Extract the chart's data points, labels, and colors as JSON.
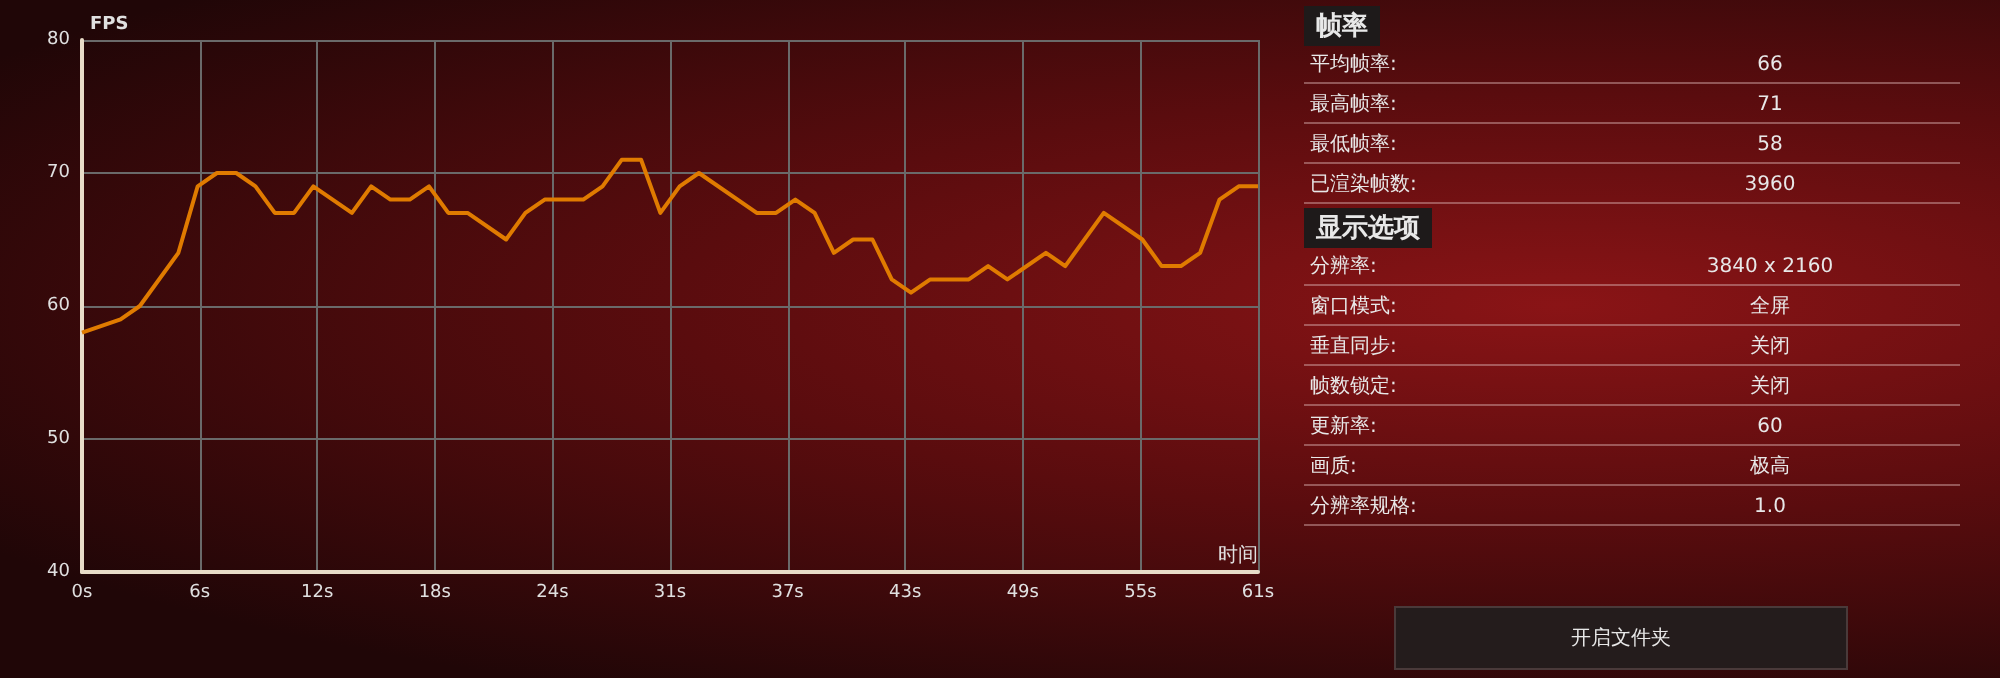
{
  "chart_data": [
    {
      "type": "line",
      "xlabel": "时间",
      "ylabel": "FPS",
      "series": [
        {
          "color": "#e07b00",
          "x": [
            0,
            2,
            3,
            5,
            6,
            7,
            8,
            9,
            10,
            11,
            12,
            14,
            15,
            16,
            17,
            18,
            19,
            20,
            22,
            23,
            24,
            26,
            27,
            28,
            29,
            30,
            31,
            32,
            35,
            36,
            37,
            38,
            39,
            40,
            41,
            42,
            43,
            44,
            46,
            47,
            48,
            50,
            51,
            53,
            55,
            56,
            57,
            58,
            59,
            60,
            61
          ],
          "values": [
            58,
            59,
            60,
            64,
            69,
            70,
            70,
            69,
            67,
            67,
            69,
            67,
            69,
            68,
            68,
            69,
            67,
            67,
            65,
            67,
            68,
            68,
            69,
            71,
            71,
            67,
            69,
            70,
            67,
            67,
            68,
            67,
            64,
            65,
            65,
            62,
            61,
            62,
            62,
            63,
            62,
            64,
            63,
            67,
            65,
            63,
            63,
            64,
            68,
            69,
            69
          ]
        }
      ],
      "xlim": [
        0,
        61
      ],
      "xticks": [
        {
          "value": 0,
          "label": "0s"
        },
        {
          "value": 6.1,
          "label": "6s"
        },
        {
          "value": 12.2,
          "label": "12s"
        },
        {
          "value": 18.3,
          "label": "18s"
        },
        {
          "value": 24.4,
          "label": "24s"
        },
        {
          "value": 30.5,
          "label": "31s"
        },
        {
          "value": 36.6,
          "label": "37s"
        },
        {
          "value": 42.7,
          "label": "43s"
        },
        {
          "value": 48.8,
          "label": "49s"
        },
        {
          "value": 54.9,
          "label": "55s"
        },
        {
          "value": 61,
          "label": "61s"
        }
      ],
      "ylim": [
        40,
        80
      ],
      "yticks": [
        40,
        50,
        60,
        70,
        80
      ],
      "grid": true,
      "marker": "none",
      "line_style": "solid"
    },
    {
      "type": "other",
      "title": "帧率",
      "annotations": [
        "平均帧率:",
        "66",
        "最高帧率:",
        "71",
        "最低帧率:",
        "58",
        "已渲染帧数:",
        "3960"
      ]
    },
    {
      "type": "other",
      "title": "显示选项",
      "annotations": [
        "分辨率:",
        "3840 x 2160",
        "窗口模式:",
        "全屏",
        "垂直同步:",
        "关闭",
        "帧数锁定:",
        "关闭",
        "更新率:",
        "60",
        "画质:",
        "极高",
        "分辨率规格:",
        "1.0",
        "开启文件夹"
      ]
    }
  ]
}
